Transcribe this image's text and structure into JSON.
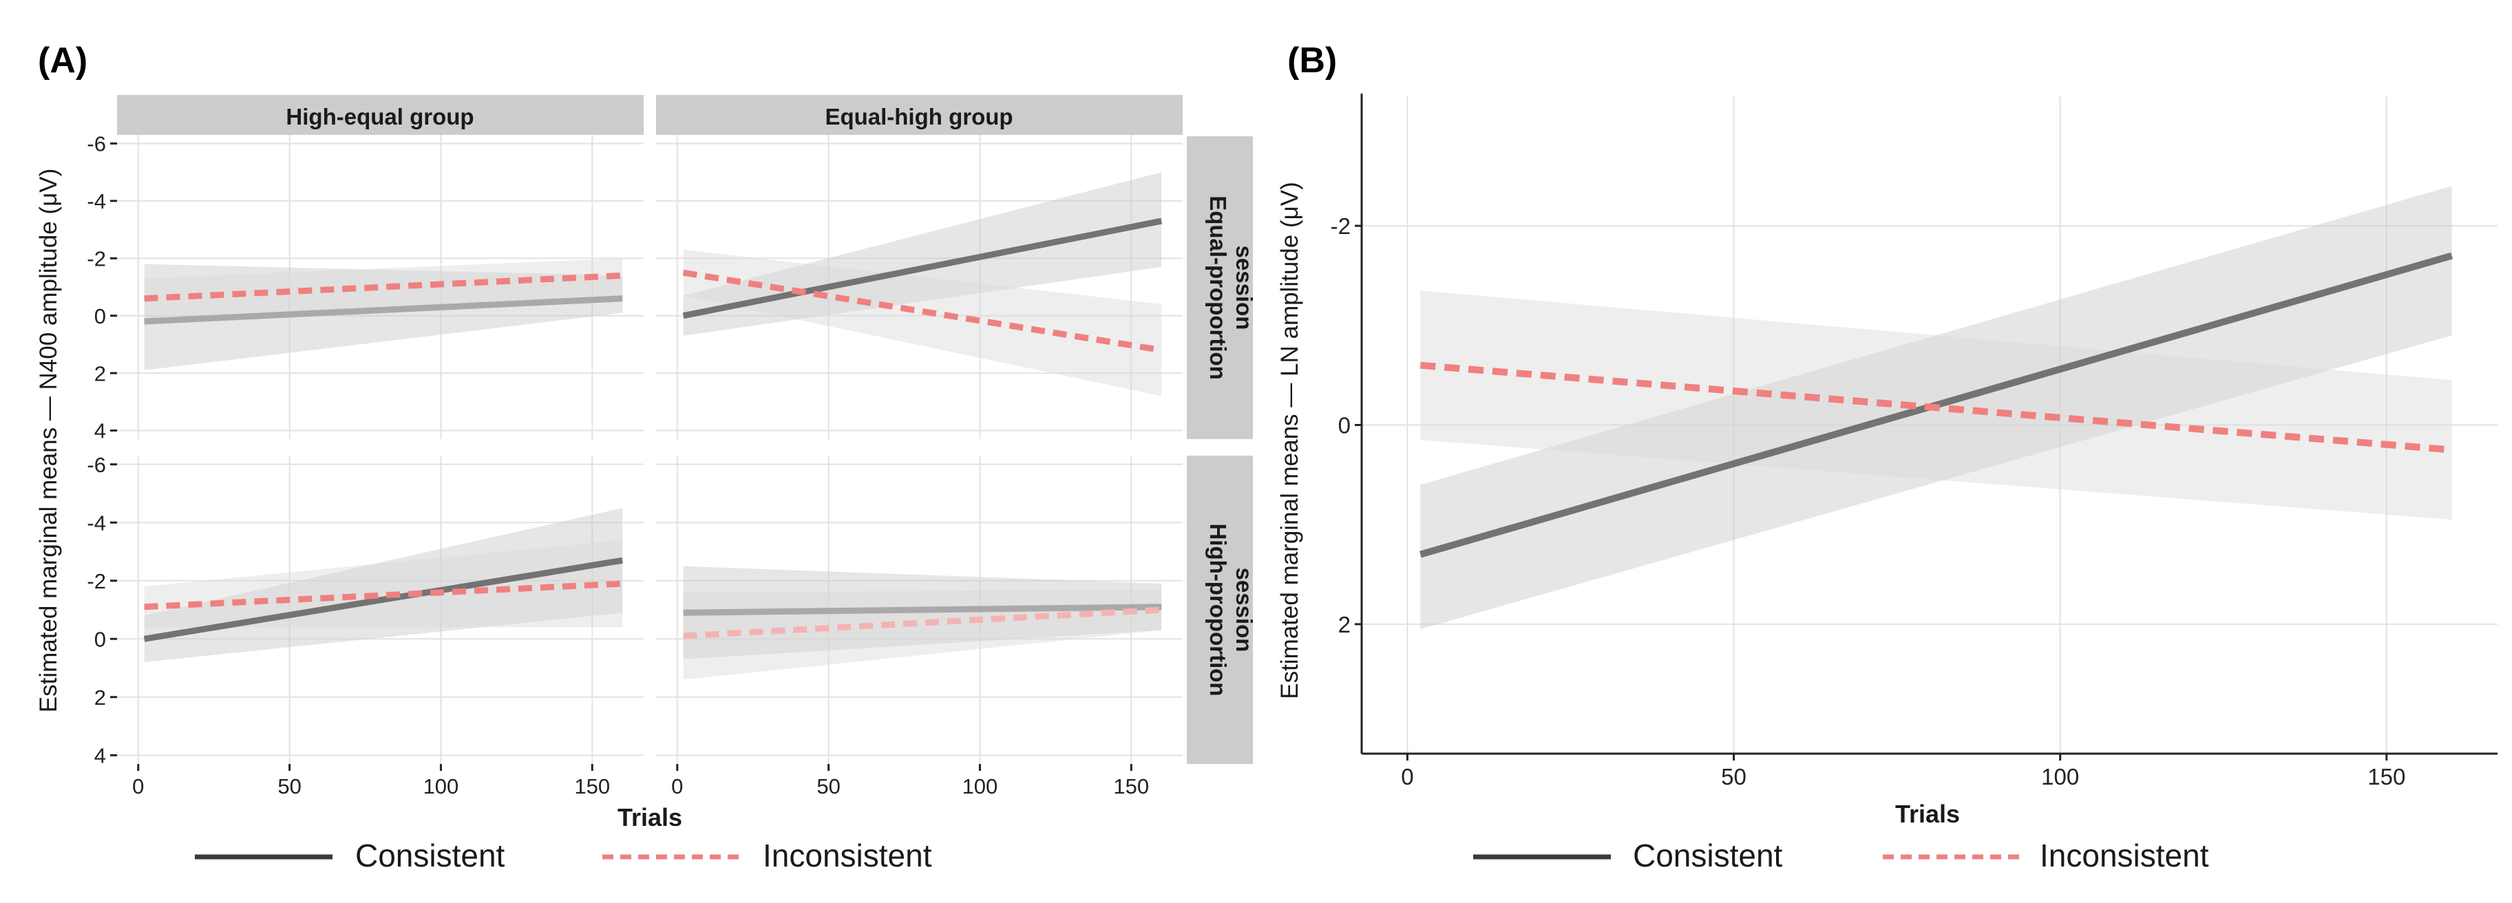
{
  "panel_a": {
    "label": "(A)",
    "ylabel": "Estimated marginal means — N400 amplitude (μV)",
    "xlabel": "Trials",
    "columns": [
      "High-equal group",
      "Equal-high group"
    ],
    "rows": [
      [
        "Equal-proportion",
        "session"
      ],
      [
        "High-proportion",
        "session"
      ]
    ],
    "xticks": [
      "0",
      "50",
      "100",
      "150"
    ],
    "yticks": [
      "-6",
      "-4",
      "-2",
      "0",
      "2",
      "4"
    ]
  },
  "panel_b": {
    "label": "(B)",
    "ylabel": "Estimated marginal means — LN amplitude (μV)",
    "xlabel": "Trials",
    "xticks": [
      "0",
      "50",
      "100",
      "150"
    ],
    "yticks": [
      "-2",
      "0",
      "2"
    ]
  },
  "legend": {
    "consistent": "Consistent",
    "inconsistent": "Inconsistent"
  },
  "colors": {
    "consistent_dark": "#737373",
    "consistent_light": "#a9a9a9",
    "inconsistent": "#f08080",
    "inconsistent_light": "#f4b3b3",
    "strip": "#cccccc",
    "ribbon": "#d3d3d3"
  },
  "chart_data": [
    {
      "type": "line",
      "title": "(A)",
      "xlabel": "Trials",
      "ylabel": "Estimated marginal means — N400 amplitude (μV)",
      "xlim": [
        -7,
        167
      ],
      "ylim": [
        -6.3,
        4.3
      ],
      "y_reversed": true,
      "facets": [
        {
          "column": "High-equal group",
          "row": "Equal-proportion session",
          "series": [
            {
              "name": "Consistent",
              "x": [
                2,
                160
              ],
              "y": [
                0.2,
                -0.6
              ],
              "band_low": [
                1.9,
                -0.1
              ],
              "band_high": [
                -1.8,
                -1.4
              ],
              "significant": false
            },
            {
              "name": "Inconsistent",
              "x": [
                2,
                160
              ],
              "y": [
                -0.6,
                -1.4
              ],
              "band_low": [
                0.1,
                -0.7
              ],
              "band_high": [
                -1.3,
                -2.0
              ],
              "significant": true
            }
          ]
        },
        {
          "column": "Equal-high group",
          "row": "Equal-proportion session",
          "series": [
            {
              "name": "Consistent",
              "x": [
                2,
                160
              ],
              "y": [
                0.0,
                -3.3
              ],
              "band_low": [
                0.7,
                -1.7
              ],
              "band_high": [
                -0.7,
                -5.0
              ],
              "significant": true
            },
            {
              "name": "Inconsistent",
              "x": [
                2,
                160
              ],
              "y": [
                -1.5,
                1.2
              ],
              "band_low": [
                -0.7,
                2.8
              ],
              "band_high": [
                -2.3,
                -0.4
              ],
              "significant": true
            }
          ]
        },
        {
          "column": "High-equal group",
          "row": "High-proportion session",
          "series": [
            {
              "name": "Consistent",
              "x": [
                2,
                160
              ],
              "y": [
                0.0,
                -2.7
              ],
              "band_low": [
                0.8,
                -0.9
              ],
              "band_high": [
                -0.8,
                -4.5
              ],
              "significant": true
            },
            {
              "name": "Inconsistent",
              "x": [
                2,
                160
              ],
              "y": [
                -1.1,
                -1.9
              ],
              "band_low": [
                -0.4,
                -0.4
              ],
              "band_high": [
                -1.8,
                -3.4
              ],
              "significant": true
            }
          ]
        },
        {
          "column": "Equal-high group",
          "row": "High-proportion session",
          "series": [
            {
              "name": "Consistent",
              "x": [
                2,
                160
              ],
              "y": [
                -0.9,
                -1.1
              ],
              "band_low": [
                0.7,
                -0.3
              ],
              "band_high": [
                -2.5,
                -1.9
              ],
              "significant": false
            },
            {
              "name": "Inconsistent",
              "x": [
                2,
                160
              ],
              "y": [
                -0.1,
                -1.0
              ],
              "band_low": [
                1.4,
                -0.3
              ],
              "band_high": [
                -1.6,
                -1.7
              ],
              "significant": false
            }
          ]
        }
      ]
    },
    {
      "type": "line",
      "title": "(B)",
      "xlabel": "Trials",
      "ylabel": "Estimated marginal means — LN amplitude (μV)",
      "xlim": [
        -7,
        167
      ],
      "ylim": [
        -3.3,
        3.3
      ],
      "y_reversed": true,
      "series": [
        {
          "name": "Consistent",
          "x": [
            2,
            160
          ],
          "y": [
            1.3,
            -1.7
          ],
          "band_low": [
            2.05,
            -0.9
          ],
          "band_high": [
            0.6,
            -2.4
          ],
          "significant": true
        },
        {
          "name": "Inconsistent",
          "x": [
            2,
            160
          ],
          "y": [
            -0.6,
            0.25
          ],
          "band_low": [
            0.15,
            0.95
          ],
          "band_high": [
            -1.35,
            -0.45
          ],
          "significant": true
        }
      ]
    }
  ]
}
